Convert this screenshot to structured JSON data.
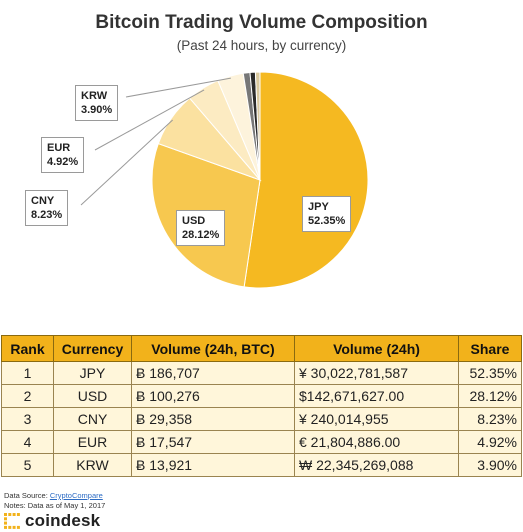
{
  "chart_data": {
    "type": "pie",
    "title": "Bitcoin Trading Volume Composition",
    "subtitle": "(Past 24 hours, by currency)",
    "slices": [
      {
        "label": "JPY",
        "share": 52.35,
        "share_text": "52.35%",
        "color": "#f5b921"
      },
      {
        "label": "USD",
        "share": 28.12,
        "share_text": "28.12%",
        "color": "#f7c84f"
      },
      {
        "label": "CNY",
        "share": 8.23,
        "share_text": "8.23%",
        "color": "#fbe1a0"
      },
      {
        "label": "EUR",
        "share": 4.92,
        "share_text": "4.92%",
        "color": "#fcebc2"
      },
      {
        "label": "KRW",
        "share": 3.9,
        "share_text": "3.90%",
        "color": "#fdf3dc"
      },
      {
        "label": "",
        "share": 1.0,
        "share_text": "",
        "color": "#777777"
      },
      {
        "label": "",
        "share": 0.8,
        "share_text": "",
        "color": "#2a2a2a"
      },
      {
        "label": "",
        "share": 0.68,
        "share_text": "",
        "color": "#d9c9a0"
      }
    ]
  },
  "table": {
    "headers": [
      "Rank",
      "Currency",
      "Volume (24h, BTC)",
      "Volume (24h)",
      "Share"
    ],
    "rows": [
      [
        "1",
        "JPY",
        "Ƀ 186,707",
        "¥ 30,022,781,587",
        "52.35%"
      ],
      [
        "2",
        "USD",
        "Ƀ 100,276",
        "$142,671,627.00",
        "28.12%"
      ],
      [
        "3",
        "CNY",
        "Ƀ 29,358",
        "¥ 240,014,955",
        "8.23%"
      ],
      [
        "4",
        "EUR",
        "Ƀ 17,547",
        "€ 21,804,886.00",
        "4.92%"
      ],
      [
        "5",
        "KRW",
        "Ƀ 13,921",
        "₩ 22,345,269,088",
        "3.90%"
      ]
    ]
  },
  "footer": {
    "source_prefix": "Data Source: ",
    "source_link": "CryptoCompare",
    "notes": "Notes: Data as of May 1, 2017",
    "brand": "coindesk"
  },
  "colors": {
    "accent": "#f2b21b",
    "table_cell": "#fff6da"
  },
  "icons": {
    "brand_mark": "coindesk-logo-icon"
  }
}
